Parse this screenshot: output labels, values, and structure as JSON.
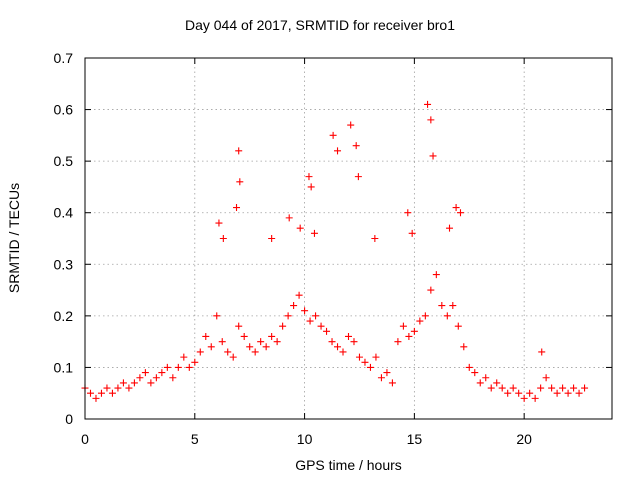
{
  "chart_data": {
    "type": "scatter",
    "title": "Day 044 of 2017, SRMTID for receiver bro1",
    "xlabel": "GPS time / hours",
    "ylabel": "SRMTID / TECUs",
    "xlim": [
      0,
      24
    ],
    "ylim": [
      0,
      0.7
    ],
    "xticks": [
      0,
      5,
      10,
      15,
      20
    ],
    "yticks": [
      0,
      0.1,
      0.2,
      0.3,
      0.4,
      0.5,
      0.6,
      0.7
    ],
    "xtick_labels": [
      "0",
      "5",
      "10",
      "15",
      "20"
    ],
    "ytick_labels": [
      "0",
      "0.1",
      "0.2",
      "0.3",
      "0.4",
      "0.5",
      "0.6",
      "0.7"
    ],
    "grid": true,
    "marker": "+",
    "color": "#ff0000",
    "series": [
      {
        "name": "SRMTID",
        "x": [
          0.0,
          0.25,
          0.5,
          0.75,
          1.0,
          1.25,
          1.5,
          1.75,
          2.0,
          2.25,
          2.5,
          2.75,
          3.0,
          3.25,
          3.5,
          3.75,
          4.0,
          4.25,
          4.5,
          4.75,
          5.0,
          5.25,
          5.5,
          5.75,
          6.0,
          6.25,
          6.5,
          6.75,
          7.0,
          7.25,
          7.5,
          7.75,
          8.0,
          8.25,
          8.5,
          8.75,
          9.0,
          9.25,
          9.5,
          9.75,
          10.0,
          10.25,
          10.5,
          10.75,
          11.0,
          11.25,
          11.5,
          11.75,
          12.0,
          12.25,
          12.5,
          12.75,
          13.0,
          13.25,
          13.5,
          13.75,
          14.0,
          14.25,
          14.5,
          14.75,
          15.0,
          15.25,
          15.5,
          15.75,
          16.0,
          16.25,
          16.5,
          16.75,
          17.0,
          17.25,
          17.5,
          17.75,
          18.0,
          18.25,
          18.5,
          18.75,
          19.0,
          19.25,
          19.5,
          19.75,
          20.0,
          20.25,
          20.5,
          20.75,
          21.0,
          21.25,
          21.5,
          21.75,
          22.0,
          22.25,
          22.5,
          22.75,
          6.1,
          6.3,
          6.9,
          7.0,
          7.05,
          8.5,
          9.3,
          9.8,
          10.2,
          10.3,
          10.45,
          11.3,
          11.5,
          12.1,
          12.35,
          12.45,
          13.2,
          14.7,
          14.9,
          15.6,
          15.75,
          15.85,
          16.6,
          16.9,
          17.1,
          20.8
        ],
        "y": [
          0.06,
          0.05,
          0.04,
          0.05,
          0.06,
          0.05,
          0.06,
          0.07,
          0.06,
          0.07,
          0.08,
          0.09,
          0.07,
          0.08,
          0.09,
          0.1,
          0.08,
          0.1,
          0.12,
          0.1,
          0.11,
          0.13,
          0.16,
          0.14,
          0.2,
          0.15,
          0.13,
          0.12,
          0.18,
          0.16,
          0.14,
          0.13,
          0.15,
          0.14,
          0.16,
          0.15,
          0.18,
          0.2,
          0.22,
          0.24,
          0.21,
          0.19,
          0.2,
          0.18,
          0.17,
          0.15,
          0.14,
          0.13,
          0.16,
          0.15,
          0.12,
          0.11,
          0.1,
          0.12,
          0.08,
          0.09,
          0.07,
          0.15,
          0.18,
          0.16,
          0.17,
          0.19,
          0.2,
          0.25,
          0.28,
          0.22,
          0.2,
          0.22,
          0.18,
          0.14,
          0.1,
          0.09,
          0.07,
          0.08,
          0.06,
          0.07,
          0.06,
          0.05,
          0.06,
          0.05,
          0.04,
          0.05,
          0.04,
          0.06,
          0.08,
          0.06,
          0.05,
          0.06,
          0.05,
          0.06,
          0.05,
          0.06,
          0.38,
          0.35,
          0.41,
          0.52,
          0.46,
          0.35,
          0.39,
          0.37,
          0.47,
          0.45,
          0.36,
          0.55,
          0.52,
          0.57,
          0.53,
          0.47,
          0.35,
          0.4,
          0.36,
          0.61,
          0.58,
          0.51,
          0.37,
          0.41,
          0.4,
          0.13
        ]
      }
    ]
  }
}
